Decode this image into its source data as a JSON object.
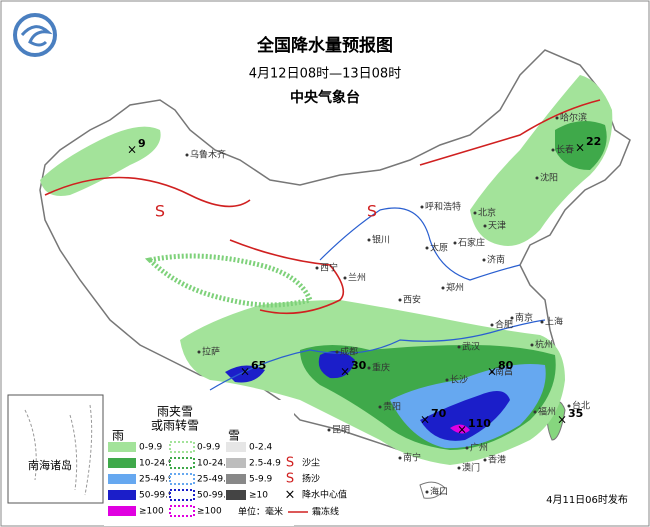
{
  "header": {
    "title": "全国降水量预报图",
    "period": "4月12日08时—13日08时",
    "issuer": "中央气象台"
  },
  "cities": [
    "乌鲁木齐",
    "哈尔滨",
    "长春",
    "沈阳",
    "呼和浩特",
    "北京",
    "天津",
    "银川",
    "太原",
    "石家庄",
    "济南",
    "西宁",
    "兰州",
    "西安",
    "郑州",
    "合肥",
    "南京",
    "上海",
    "杭州",
    "武汉",
    "成都",
    "重庆",
    "长沙",
    "南昌",
    "福州",
    "贵阳",
    "拉萨",
    "昆明",
    "南宁",
    "广州",
    "香港",
    "澳门",
    "海口",
    "台北"
  ],
  "centers": [
    9,
    22,
    65,
    30,
    80,
    70,
    110,
    35
  ],
  "inset": "南海诸岛",
  "legend": {
    "rain": "雨",
    "sleet": [
      "雨夹雪",
      "或雨转雪"
    ],
    "snow": "雪",
    "rain_ranges": [
      "0-9.9",
      "10-24.9",
      "25-49.9",
      "50-99.9",
      "≥100"
    ],
    "sleet_ranges": [
      "0-9.9",
      "10-24.9",
      "25-49.9",
      "50-99.9",
      "≥100"
    ],
    "snow_ranges": [
      "0-2.4",
      "2.5-4.9",
      "5-9.9",
      "≥10"
    ],
    "symbols": [
      "沙尘",
      "扬沙",
      "降水中心值"
    ],
    "unit": "单位：毫米",
    "frost": "霜冻线"
  },
  "issued": "4月11日06时发布"
}
